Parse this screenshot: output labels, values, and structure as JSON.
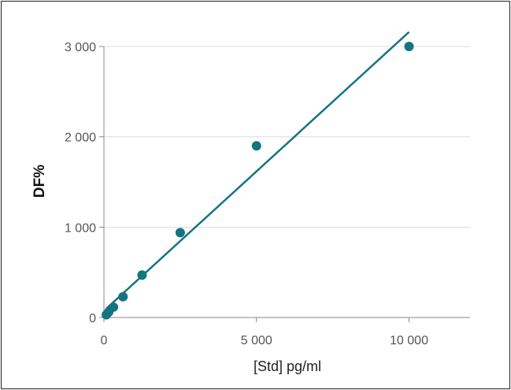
{
  "chart_data": {
    "type": "scatter",
    "title": "",
    "xlabel": "[Std] pg/ml",
    "ylabel": "DF%",
    "xlim": [
      0,
      12000
    ],
    "ylim": [
      0,
      3000
    ],
    "xticks": [
      0,
      5000,
      10000
    ],
    "xtick_labels": [
      "0",
      "5 000",
      "10 000"
    ],
    "yticks": [
      0,
      1000,
      2000,
      3000
    ],
    "ytick_labels": [
      "0",
      "1 000",
      "2 000",
      "3 000"
    ],
    "grid": "horizontal",
    "legend": "none",
    "series": [
      {
        "x": [
          78,
          156,
          312,
          625,
          1250,
          2500,
          5000,
          10000
        ],
        "y": [
          30,
          60,
          115,
          230,
          470,
          940,
          1900,
          3000
        ],
        "color": "#137580",
        "trendline": "linear"
      }
    ]
  }
}
